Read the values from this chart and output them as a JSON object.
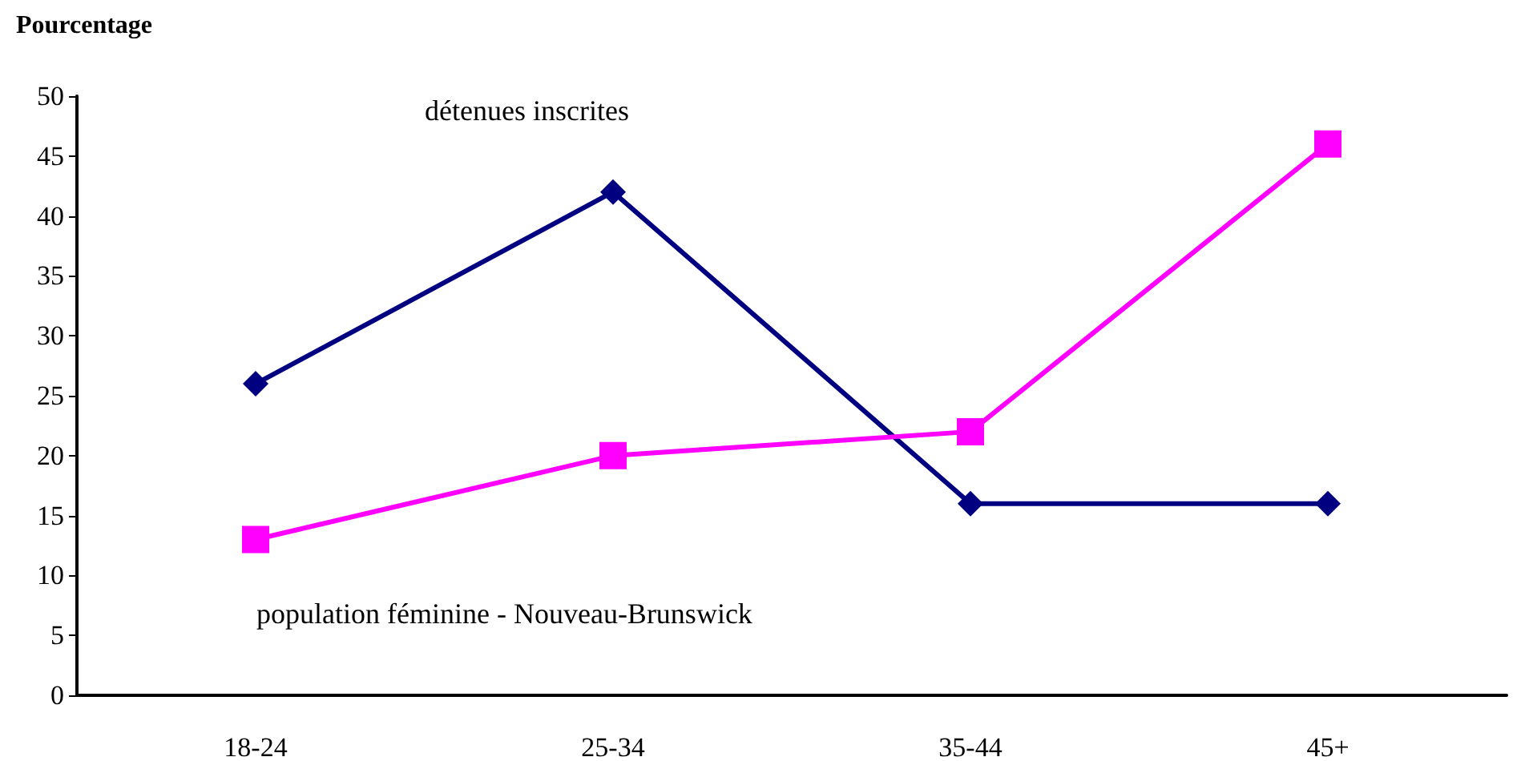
{
  "chart_data": {
    "type": "line",
    "ylabel": "Pourcentage",
    "categories": [
      "18-24",
      "25-34",
      "35-44",
      "45+"
    ],
    "series": [
      {
        "name": "détenues inscrites",
        "color": "#000080",
        "marker": "diamond",
        "values": [
          26,
          42,
          16,
          16
        ]
      },
      {
        "name": "population féminine - Nouveau-Brunswick",
        "color": "#ff00ff",
        "marker": "square",
        "values": [
          13,
          20,
          22,
          46
        ]
      }
    ],
    "ylim": [
      0,
      50
    ],
    "yticks": [
      0,
      5,
      10,
      15,
      20,
      25,
      30,
      35,
      40,
      45,
      50
    ],
    "grid": false,
    "legend": false,
    "line_style": "solid"
  }
}
